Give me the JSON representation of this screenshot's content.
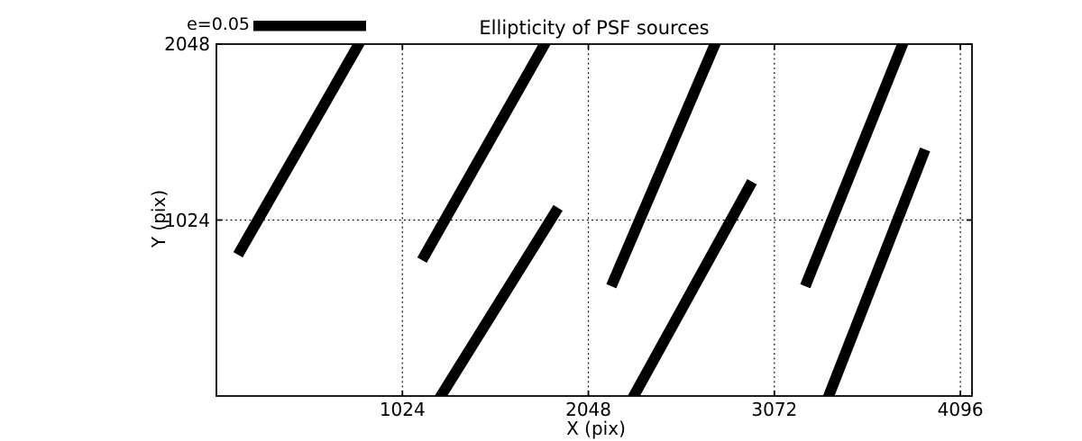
{
  "chart_data": {
    "type": "scatter",
    "subtype": "quiver-ellipticity-whiskers",
    "title": "Ellipticity of PSF sources",
    "xlabel": "X (pix)",
    "ylabel": "Y (pix)",
    "xlim": [
      0,
      4160
    ],
    "ylim": [
      0,
      2048
    ],
    "x_ticks": [
      1024,
      2048,
      3072,
      4096
    ],
    "y_ticks": [
      1024,
      2048
    ],
    "grid": "dotted",
    "legend_position": "top-left-above-axes",
    "legend": {
      "label": "e=0.05"
    },
    "colors": {
      "whisker": "#000000",
      "axes": "#000000",
      "grid": "#000000",
      "background": "#ffffff"
    },
    "whiskers": [
      {
        "x1": 119,
        "y1": 822,
        "x2": 784,
        "y2": 2048
      },
      {
        "x1": 1132,
        "y1": 791,
        "x2": 1807,
        "y2": 2048
      },
      {
        "x1": 1236,
        "y1": 0,
        "x2": 1881,
        "y2": 1095
      },
      {
        "x1": 2174,
        "y1": 639,
        "x2": 2745,
        "y2": 2048
      },
      {
        "x1": 2298,
        "y1": 0,
        "x2": 2949,
        "y2": 1247
      },
      {
        "x1": 3242,
        "y1": 639,
        "x2": 3778,
        "y2": 2048
      },
      {
        "x1": 3371,
        "y1": 0,
        "x2": 3902,
        "y2": 1435
      }
    ]
  }
}
